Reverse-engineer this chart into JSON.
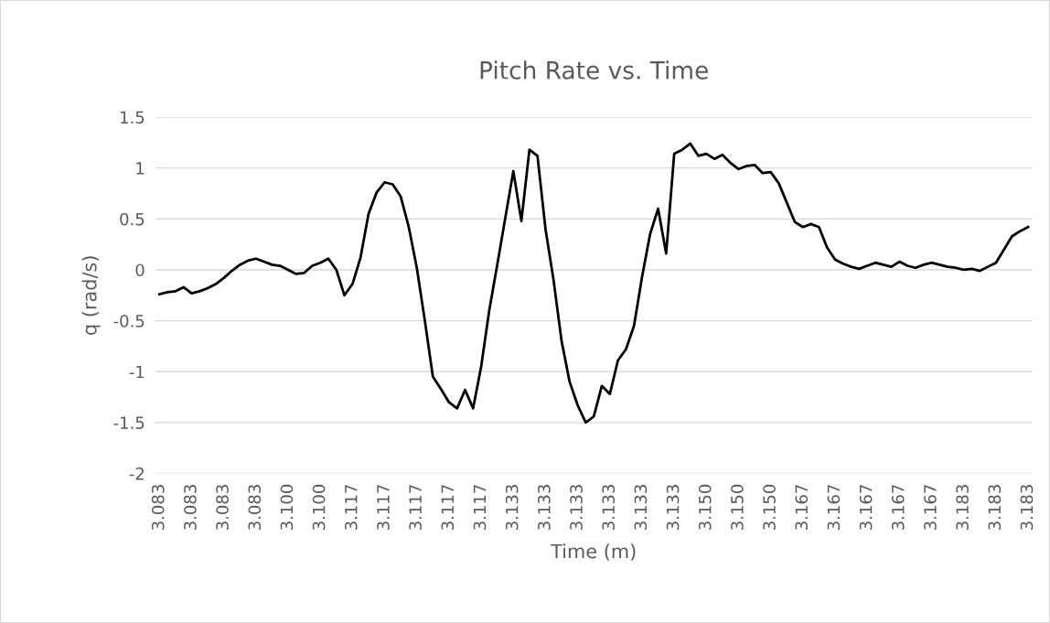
{
  "chart_data": {
    "type": "line",
    "title": "Pitch Rate vs. Time",
    "xlabel": "Time (m)",
    "ylabel": "q (rad/s)",
    "categories": [
      "3.083",
      null,
      null,
      null,
      "3.083",
      null,
      null,
      null,
      "3.083",
      null,
      null,
      null,
      "3.083",
      null,
      null,
      null,
      "3.100",
      null,
      null,
      null,
      "3.100",
      null,
      null,
      null,
      "3.117",
      null,
      null,
      null,
      "3.117",
      null,
      null,
      null,
      "3.117",
      null,
      null,
      null,
      "3.117",
      null,
      null,
      null,
      "3.117",
      null,
      null,
      null,
      "3.133",
      null,
      null,
      null,
      "3.133",
      null,
      null,
      null,
      "3.133",
      null,
      null,
      null,
      "3.133",
      null,
      null,
      null,
      "3.133",
      null,
      null,
      null,
      "3.133",
      null,
      null,
      null,
      "3.150",
      null,
      null,
      null,
      "3.150",
      null,
      null,
      null,
      "3.150",
      null,
      null,
      null,
      "3.167",
      null,
      null,
      null,
      "3.167",
      null,
      null,
      null,
      "3.167",
      null,
      null,
      null,
      "3.167",
      null,
      null,
      null,
      "3.167",
      null,
      null,
      null,
      "3.183",
      null,
      null,
      null,
      "3.183",
      null,
      null,
      null,
      "3.183"
    ],
    "series": [
      {
        "color": "#000000",
        "values": [
          -0.24,
          -0.22,
          -0.21,
          -0.17,
          -0.23,
          -0.21,
          -0.18,
          -0.14,
          -0.08,
          -0.01,
          0.05,
          0.09,
          0.11,
          0.08,
          0.05,
          0.04,
          0.0,
          -0.04,
          -0.03,
          0.04,
          0.07,
          0.11,
          0.0,
          -0.25,
          -0.14,
          0.12,
          0.55,
          0.76,
          0.86,
          0.84,
          0.72,
          0.42,
          0.02,
          -0.5,
          -1.05,
          -1.17,
          -1.3,
          -1.36,
          -1.18,
          -1.36,
          -0.95,
          -0.4,
          0.05,
          0.51,
          0.97,
          0.48,
          1.18,
          1.12,
          0.4,
          -0.1,
          -0.7,
          -1.1,
          -1.33,
          -1.5,
          -1.44,
          -1.14,
          -1.22,
          -0.89,
          -0.78,
          -0.55,
          -0.07,
          0.35,
          0.6,
          0.16,
          1.14,
          1.18,
          1.24,
          1.12,
          1.14,
          1.09,
          1.13,
          1.05,
          0.99,
          1.02,
          1.03,
          0.95,
          0.96,
          0.85,
          0.66,
          0.47,
          0.42,
          0.45,
          0.42,
          0.22,
          0.1,
          0.06,
          0.03,
          0.01,
          0.04,
          0.07,
          0.05,
          0.03,
          0.08,
          0.04,
          0.02,
          0.05,
          0.07,
          0.05,
          0.03,
          0.02,
          0.0,
          0.01,
          -0.01,
          0.03,
          0.07,
          0.2,
          0.33,
          0.38,
          0.42
        ]
      }
    ],
    "ylim": [
      -2,
      1.5
    ],
    "yticks": [
      -2,
      -1.5,
      -1,
      -0.5,
      0,
      0.5,
      1,
      1.5
    ],
    "grid": "y",
    "legend": false,
    "marker": "none",
    "line_style": "solid"
  }
}
